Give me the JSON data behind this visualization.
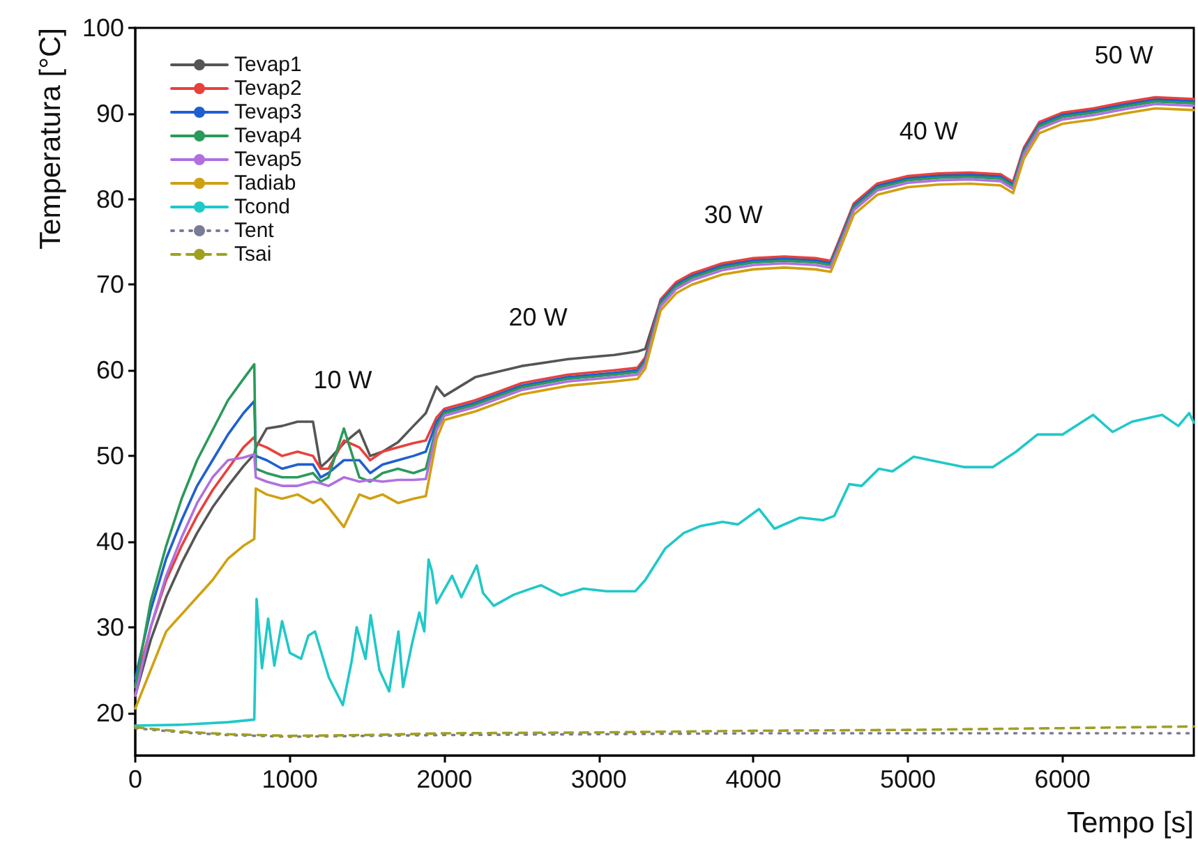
{
  "chart_data": {
    "type": "line",
    "xlabel": "Tempo [s]",
    "ylabel": "Temperatura [°C]",
    "xlim": [
      0,
      6850
    ],
    "ylim": [
      15,
      100
    ],
    "xticks": [
      0,
      1000,
      2000,
      3000,
      4000,
      5000,
      6000
    ],
    "yticks": [
      20,
      30,
      40,
      50,
      60,
      70,
      80,
      90,
      100
    ],
    "grid": false,
    "legend": "top left",
    "marker": "none",
    "line_style": "solid",
    "annotations": [
      "10 W",
      "20 W",
      "30 W",
      "40 W",
      "50 W"
    ],
    "series": [
      {
        "name": "Tevap1",
        "color": "#555555",
        "x": [
          0,
          100,
          200,
          300,
          400,
          500,
          600,
          700,
          770,
          780,
          850,
          950,
          1050,
          1150,
          1200,
          1250,
          1350,
          1450,
          1520,
          1600,
          1700,
          1800,
          1880,
          1950,
          2000,
          2200,
          2500,
          2800,
          3100,
          3250,
          3300,
          3400,
          3500,
          3600,
          3800,
          4000,
          4200,
          4400,
          4500,
          4550,
          4650,
          4800,
          5000,
          5200,
          5400,
          5600,
          5680,
          5750,
          5850,
          6000,
          6200,
          6400,
          6600,
          6850
        ],
        "values": [
          22,
          28.5,
          33.5,
          37.5,
          41,
          44,
          46.5,
          48.8,
          50.2,
          51,
          53.2,
          53.5,
          54,
          54,
          48.7,
          49.5,
          51.5,
          53,
          50,
          50.5,
          51.6,
          53.5,
          55,
          58.1,
          57,
          59.2,
          60.5,
          61.3,
          61.8,
          62.2,
          62.5,
          68.2,
          70.2,
          71.1,
          72.3,
          72.9,
          73.1,
          72.9,
          72.6,
          74.8,
          79.3,
          81.6,
          82.5,
          82.8,
          82.9,
          82.7,
          81.8,
          85.8,
          88.8,
          89.9,
          90.4,
          91.1,
          91.7,
          91.5
        ]
      },
      {
        "name": "Tevap2",
        "color": "#e8413c",
        "x": [
          0,
          100,
          200,
          300,
          400,
          500,
          600,
          700,
          770,
          780,
          850,
          950,
          1050,
          1150,
          1200,
          1250,
          1350,
          1450,
          1520,
          1600,
          1700,
          1800,
          1880,
          1950,
          2000,
          2200,
          2500,
          2800,
          3100,
          3250,
          3300,
          3400,
          3500,
          3600,
          3800,
          4000,
          4200,
          4400,
          4500,
          4550,
          4650,
          4800,
          5000,
          5200,
          5400,
          5600,
          5680,
          5750,
          5850,
          6000,
          6200,
          6400,
          6600,
          6850
        ],
        "values": [
          23,
          30,
          35.5,
          39.5,
          43,
          46,
          48.5,
          51,
          52.2,
          51.5,
          51,
          50,
          50.5,
          50,
          48.5,
          48.5,
          51.8,
          51,
          49.5,
          50.5,
          51,
          51.5,
          51.8,
          54.5,
          55.5,
          56.5,
          58.5,
          59.5,
          60,
          60.3,
          61.5,
          68.3,
          70.3,
          71.3,
          72.5,
          73.1,
          73.3,
          73.1,
          72.8,
          75,
          79.5,
          81.8,
          82.7,
          83,
          83.1,
          82.9,
          82,
          86,
          89,
          90.1,
          90.6,
          91.3,
          91.9,
          91.7
        ]
      },
      {
        "name": "Tevap3",
        "color": "#1f5fd0",
        "x": [
          0,
          100,
          200,
          300,
          400,
          500,
          600,
          700,
          770,
          780,
          850,
          950,
          1050,
          1150,
          1200,
          1250,
          1350,
          1450,
          1520,
          1600,
          1700,
          1800,
          1880,
          1950,
          2000,
          2200,
          2500,
          2800,
          3100,
          3250,
          3300,
          3400,
          3500,
          3600,
          3800,
          4000,
          4200,
          4400,
          4500,
          4550,
          4650,
          4800,
          5000,
          5200,
          5400,
          5600,
          5680,
          5750,
          5850,
          6000,
          6200,
          6400,
          6600,
          6850
        ],
        "values": [
          24,
          32,
          38,
          42.5,
          46.5,
          49.5,
          52.5,
          55,
          56.4,
          50,
          49.5,
          48.5,
          49,
          49,
          47.5,
          48,
          49.5,
          49.5,
          48,
          49,
          49.5,
          50,
          50.5,
          54,
          55.2,
          56.2,
          58.2,
          59.2,
          59.7,
          60,
          61.2,
          68,
          70,
          71,
          72.2,
          72.8,
          73,
          72.8,
          72.5,
          74.7,
          79.2,
          81.5,
          82.4,
          82.7,
          82.8,
          82.6,
          81.7,
          85.7,
          88.7,
          89.8,
          90.3,
          91,
          91.6,
          91.4
        ]
      },
      {
        "name": "Tevap4",
        "color": "#2a9a5a",
        "x": [
          0,
          100,
          200,
          300,
          400,
          500,
          600,
          700,
          770,
          780,
          850,
          950,
          1050,
          1150,
          1200,
          1250,
          1350,
          1450,
          1520,
          1600,
          1700,
          1800,
          1880,
          1950,
          2000,
          2200,
          2500,
          2800,
          3100,
          3250,
          3300,
          3400,
          3500,
          3600,
          3800,
          4000,
          4200,
          4400,
          4500,
          4550,
          4650,
          4800,
          5000,
          5200,
          5400,
          5600,
          5680,
          5750,
          5850,
          6000,
          6200,
          6400,
          6600,
          6850
        ],
        "values": [
          23,
          33,
          39.5,
          45,
          49.5,
          53,
          56.5,
          59,
          60.7,
          48.5,
          48,
          47.5,
          47.5,
          48,
          47,
          47.5,
          53.2,
          47.5,
          47,
          48,
          48.5,
          48,
          48.5,
          53.5,
          55,
          56,
          58,
          59,
          59.5,
          59.8,
          61,
          67.8,
          69.8,
          70.8,
          72,
          72.6,
          72.8,
          72.6,
          72.3,
          74.5,
          79,
          81.3,
          82.2,
          82.5,
          82.6,
          82.4,
          81.5,
          85.5,
          88.5,
          89.6,
          90.1,
          90.8,
          91.4,
          91.2
        ]
      },
      {
        "name": "Tevap5",
        "color": "#b070e0",
        "x": [
          0,
          100,
          200,
          300,
          400,
          500,
          600,
          700,
          770,
          780,
          850,
          950,
          1050,
          1150,
          1200,
          1250,
          1350,
          1450,
          1520,
          1600,
          1700,
          1800,
          1880,
          1950,
          2000,
          2200,
          2500,
          2800,
          3100,
          3250,
          3300,
          3400,
          3500,
          3600,
          3800,
          4000,
          4200,
          4400,
          4500,
          4550,
          4650,
          4800,
          5000,
          5200,
          5400,
          5600,
          5680,
          5750,
          5850,
          6000,
          6200,
          6400,
          6600,
          6850
        ],
        "values": [
          22,
          30,
          36,
          40.5,
          44.5,
          47.5,
          49.5,
          49.8,
          50.2,
          47.5,
          47,
          46.5,
          46.5,
          47,
          46.8,
          46.5,
          47.5,
          47,
          47.2,
          47,
          47.2,
          47.2,
          47.3,
          53,
          54.7,
          55.7,
          57.7,
          58.7,
          59.2,
          59.5,
          60.7,
          67.5,
          69.5,
          70.5,
          71.7,
          72.3,
          72.5,
          72.3,
          72,
          74.2,
          78.7,
          81,
          81.9,
          82.2,
          82.3,
          82.1,
          81.2,
          85.2,
          88.2,
          89.3,
          89.8,
          90.5,
          91.1,
          90.9
        ]
      },
      {
        "name": "Tadiab",
        "color": "#d0a010",
        "x": [
          0,
          100,
          200,
          300,
          400,
          500,
          600,
          700,
          770,
          780,
          850,
          950,
          1050,
          1150,
          1200,
          1250,
          1350,
          1450,
          1520,
          1600,
          1700,
          1800,
          1880,
          1950,
          2000,
          2200,
          2500,
          2800,
          3100,
          3250,
          3300,
          3400,
          3500,
          3600,
          3800,
          4000,
          4200,
          4400,
          4500,
          4550,
          4650,
          4800,
          5000,
          5200,
          5400,
          5600,
          5680,
          5750,
          5850,
          6000,
          6200,
          6400,
          6600,
          6850
        ],
        "values": [
          20.5,
          25,
          29.5,
          31.5,
          33.5,
          35.5,
          38,
          39.5,
          40.3,
          46.2,
          45.5,
          45,
          45.5,
          44.5,
          45,
          44,
          41.7,
          45.5,
          45,
          45.5,
          44.5,
          45,
          45.3,
          52,
          54.2,
          55.2,
          57.2,
          58.2,
          58.7,
          59,
          60.2,
          67,
          69,
          70,
          71.2,
          71.8,
          72,
          71.8,
          71.5,
          73.7,
          78.2,
          80.5,
          81.4,
          81.7,
          81.8,
          81.6,
          80.7,
          84.7,
          87.7,
          88.8,
          89.3,
          90,
          90.6,
          90.4
        ]
      },
      {
        "name": "Tcond",
        "color": "#20c8c8",
        "x": [
          0,
          300,
          600,
          770,
          785,
          820,
          860,
          900,
          950,
          1000,
          1073,
          1120,
          1163,
          1253,
          1343,
          1400,
          1433,
          1490,
          1523,
          1580,
          1643,
          1703,
          1733,
          1790,
          1838,
          1870,
          1898,
          1920,
          1950,
          2050,
          2110,
          2210,
          2250,
          2320,
          2450,
          2625,
          2756,
          2900,
          3050,
          3236,
          3300,
          3430,
          3550,
          3656,
          3800,
          3900,
          4037,
          4137,
          4300,
          4450,
          4524,
          4620,
          4700,
          4812,
          4900,
          5037,
          5200,
          5361,
          5550,
          5700,
          5838,
          6000,
          6198,
          6324,
          6450,
          6645,
          6750,
          6820,
          6850
        ],
        "values": [
          18.5,
          18.6,
          18.9,
          19.2,
          33.3,
          25.2,
          31,
          25.5,
          30.7,
          27,
          26.3,
          29,
          29.5,
          24.1,
          20.9,
          26,
          30,
          26.3,
          31.4,
          25,
          22.5,
          29.5,
          23,
          28,
          31.7,
          29.5,
          37.9,
          36.5,
          32.8,
          36,
          33.5,
          37.2,
          34,
          32.5,
          33.8,
          34.9,
          33.7,
          34.5,
          34.2,
          34.2,
          35.5,
          39.2,
          41,
          41.8,
          42.3,
          42,
          43.8,
          41.5,
          42.8,
          42.5,
          43,
          46.7,
          46.5,
          48.5,
          48.2,
          49.9,
          49.3,
          48.7,
          48.7,
          50.5,
          52.5,
          52.5,
          54.8,
          52.8,
          54,
          54.8,
          53.5,
          55,
          53.9
        ]
      },
      {
        "name": "Tent",
        "color": "#7a7a9a",
        "line_style": "dotted",
        "x": [
          0,
          300,
          600,
          1000,
          1500,
          2000,
          3000,
          4000,
          5000,
          6000,
          6850
        ],
        "values": [
          18.2,
          17.7,
          17.4,
          17.2,
          17.3,
          17.4,
          17.5,
          17.6,
          17.6,
          17.6,
          17.6
        ]
      },
      {
        "name": "Tsai",
        "color": "#a0a020",
        "line_style": "dashed",
        "x": [
          0,
          300,
          600,
          1000,
          1500,
          2000,
          3000,
          4000,
          5000,
          6000,
          6850
        ],
        "values": [
          18.3,
          17.8,
          17.5,
          17.3,
          17.4,
          17.6,
          17.7,
          17.9,
          18,
          18.2,
          18.4
        ]
      }
    ]
  }
}
